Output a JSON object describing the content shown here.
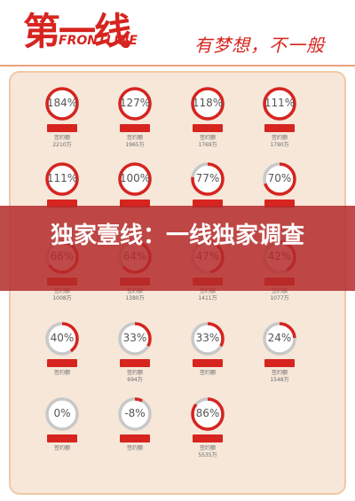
{
  "header": {
    "logo_cn": "第一线",
    "logo_en": "FRONTLINE",
    "slogan": "有梦想，不一般"
  },
  "banner": {
    "title": "独家壹线：一线独家调查"
  },
  "colors": {
    "accent": "#d7241f",
    "ring_track": "#c8c8c8",
    "panel": "#f6e7d9"
  },
  "rows": [
    [
      {
        "pct": "184%",
        "tag": "",
        "sub1": "签约额",
        "sub2": "2210万",
        "value": 1.0
      },
      {
        "pct": "127%",
        "tag": "",
        "sub1": "签约额",
        "sub2": "1965万",
        "value": 1.0
      },
      {
        "pct": "118%",
        "tag": "",
        "sub1": "签约额",
        "sub2": "1769万",
        "value": 1.0
      },
      {
        "pct": "111%",
        "tag": "",
        "sub1": "签约额",
        "sub2": "1790万",
        "value": 1.0
      }
    ],
    [
      {
        "pct": "111%",
        "tag": "",
        "sub1": "",
        "sub2": "",
        "value": 1.0
      },
      {
        "pct": "100%",
        "tag": "",
        "sub1": "",
        "sub2": "",
        "value": 1.0
      },
      {
        "pct": "77%",
        "tag": "",
        "sub1": "",
        "sub2": "",
        "value": 0.77
      },
      {
        "pct": "70%",
        "tag": "",
        "sub1": "",
        "sub2": "",
        "value": 0.7
      }
    ],
    [
      {
        "pct": "66%",
        "tag": "",
        "sub1": "签约额",
        "sub2": "1008万",
        "value": 0.66
      },
      {
        "pct": "64%",
        "tag": "",
        "sub1": "签约额",
        "sub2": "1380万",
        "value": 0.64
      },
      {
        "pct": "47%",
        "tag": "",
        "sub1": "签约额",
        "sub2": "1411万",
        "value": 0.47
      },
      {
        "pct": "42%",
        "tag": "",
        "sub1": "签约额",
        "sub2": "1077万",
        "value": 0.42
      }
    ],
    [
      {
        "pct": "40%",
        "tag": "",
        "sub1": "签约额",
        "sub2": "",
        "value": 0.4
      },
      {
        "pct": "33%",
        "tag": "",
        "sub1": "签约额",
        "sub2": "694万",
        "value": 0.33
      },
      {
        "pct": "33%",
        "tag": "",
        "sub1": "签约额",
        "sub2": "",
        "value": 0.33
      },
      {
        "pct": "24%",
        "tag": "",
        "sub1": "签约额",
        "sub2": "1548万",
        "value": 0.24
      }
    ],
    [
      {
        "pct": "0%",
        "tag": "",
        "sub1": "签约额",
        "sub2": "",
        "value": 0.0
      },
      {
        "pct": "-8%",
        "tag": "",
        "sub1": "签约额",
        "sub2": "",
        "value": 0.08
      },
      {
        "pct": "86%",
        "tag": "",
        "sub1": "签约额",
        "sub2": "5535万",
        "value": 0.86
      }
    ]
  ]
}
